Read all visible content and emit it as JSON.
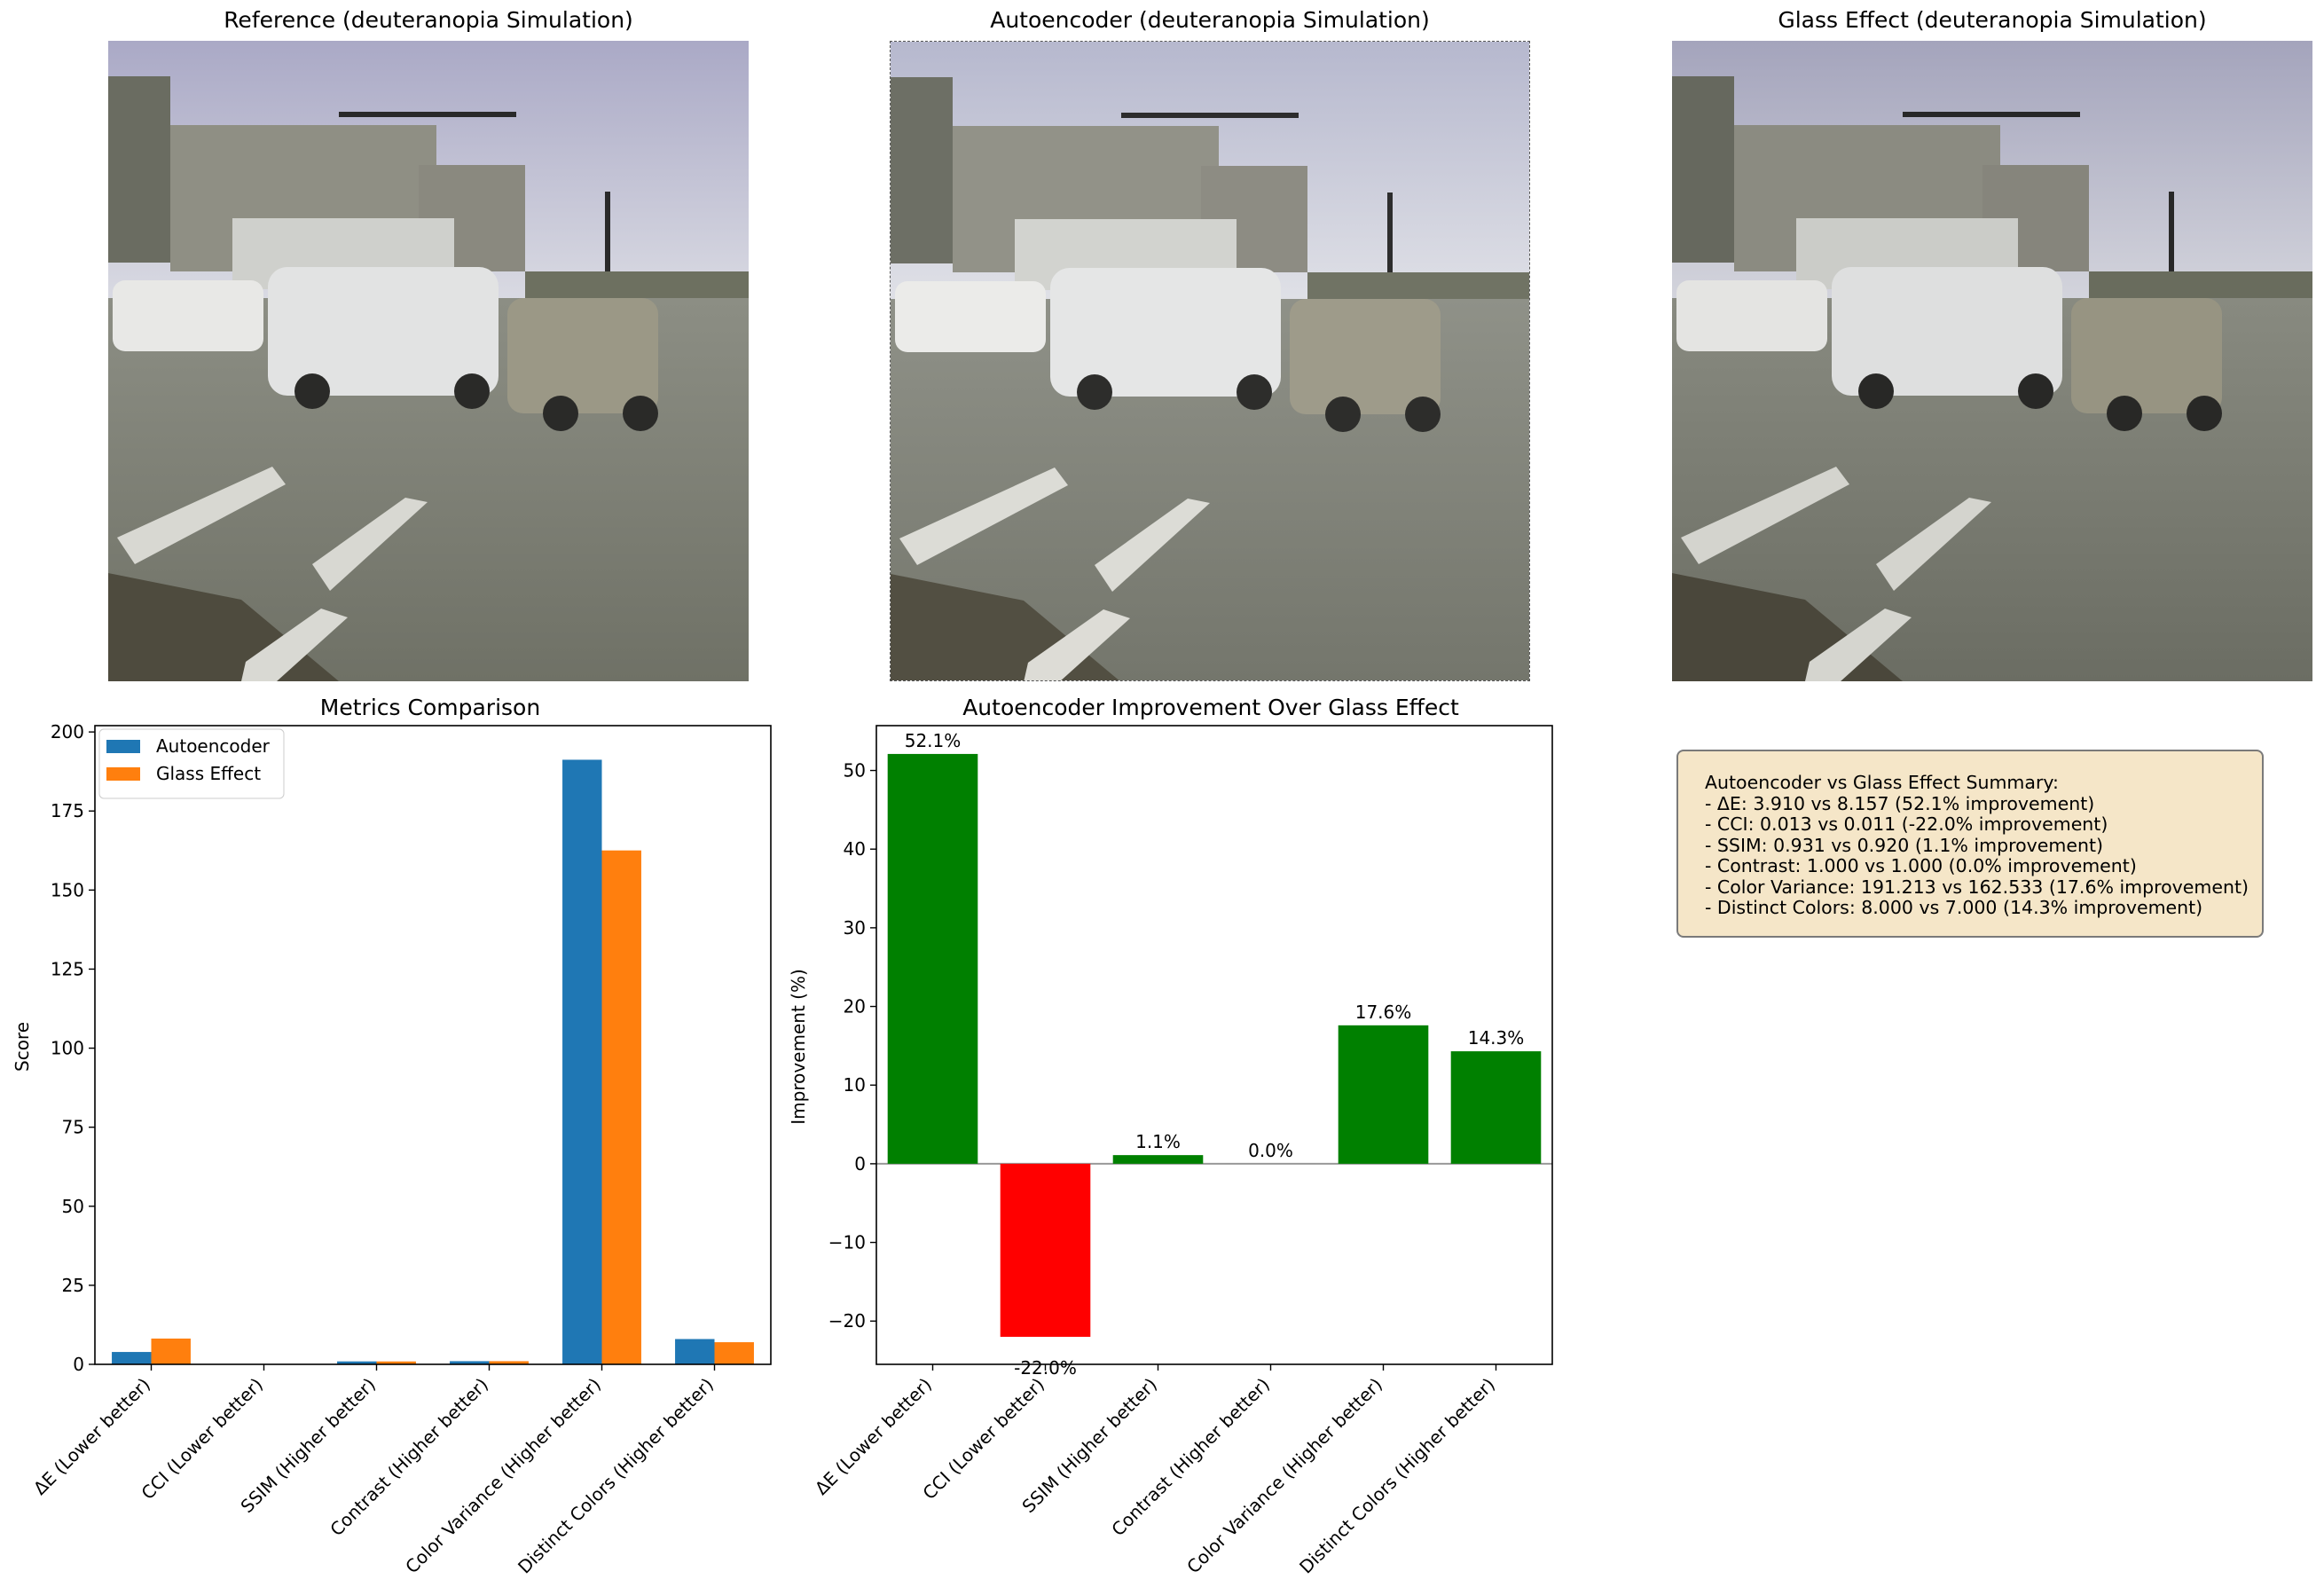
{
  "images": [
    {
      "title": "Reference (deuteranopia Simulation)"
    },
    {
      "title": "Autoencoder (deuteranopia Simulation)"
    },
    {
      "title": "Glass Effect (deuteranopia Simulation)"
    }
  ],
  "chart_data": [
    {
      "type": "bar",
      "title": "Metrics Comparison",
      "xlabel": "",
      "ylabel": "Score",
      "ylim": [
        0,
        202
      ],
      "yticks": [
        "0",
        "25",
        "50",
        "75",
        "100",
        "125",
        "150",
        "175",
        "200"
      ],
      "categories": [
        "ΔE (Lower better)",
        "CCI (Lower better)",
        "SSIM (Higher better)",
        "Contrast (Higher better)",
        "Color Variance (Higher better)",
        "Distinct Colors (Higher better)"
      ],
      "series": [
        {
          "name": "Autoencoder",
          "color": "#1f77b4",
          "values": [
            3.91,
            0.013,
            0.931,
            1.0,
            191.213,
            8.0
          ]
        },
        {
          "name": "Glass Effect",
          "color": "#ff7f0e",
          "values": [
            8.157,
            0.011,
            0.92,
            1.0,
            162.533,
            7.0
          ]
        }
      ],
      "legend": "top-left"
    },
    {
      "type": "bar",
      "title": "Autoencoder Improvement Over Glass Effect",
      "xlabel": "",
      "ylabel": "Improvement (%)",
      "ylim": [
        -25.5,
        55.7
      ],
      "yticks": [
        "−20",
        "−10",
        "0",
        "10",
        "20",
        "30",
        "40",
        "50"
      ],
      "categories": [
        "ΔE (Lower better)",
        "CCI (Lower better)",
        "SSIM (Higher better)",
        "Contrast (Higher better)",
        "Color Variance (Higher better)",
        "Distinct Colors (Higher better)"
      ],
      "values": [
        52.1,
        -22.0,
        1.1,
        0.0,
        17.6,
        14.3
      ],
      "labels": [
        "52.1%",
        "-22.0%",
        "1.1%",
        "0.0%",
        "17.6%",
        "14.3%"
      ],
      "positive_color": "#008000",
      "negative_color": "#ff0000"
    }
  ],
  "summary": {
    "title": "Autoencoder vs Glass Effect Summary:",
    "lines": [
      "- ΔE: 3.910 vs 8.157 (52.1% improvement)",
      "- CCI: 0.013 vs 0.011 (-22.0% improvement)",
      "- SSIM: 0.931 vs 0.920 (1.1% improvement)",
      "- Contrast: 1.000 vs 1.000 (0.0% improvement)",
      "- Color Variance: 191.213 vs 162.533 (17.6% improvement)",
      "- Distinct Colors: 8.000 vs 7.000 (14.3% improvement)"
    ]
  }
}
